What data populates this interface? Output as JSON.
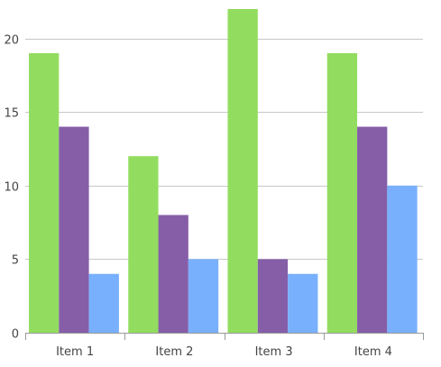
{
  "chart_data": {
    "type": "bar",
    "categories": [
      "Item 1",
      "Item 2",
      "Item 3",
      "Item 4"
    ],
    "series": [
      {
        "values": [
          19,
          12,
          22,
          19
        ],
        "color": "#92dd5f"
      },
      {
        "values": [
          14,
          8,
          5,
          14
        ],
        "color": "#865ea8"
      },
      {
        "values": [
          4,
          5,
          4,
          10
        ],
        "color": "#78b0fd"
      }
    ],
    "y_ticks": [
      "0",
      "5",
      "10",
      "15",
      "20"
    ],
    "ylim": [
      0,
      22
    ],
    "grid": true,
    "legend": "none"
  }
}
